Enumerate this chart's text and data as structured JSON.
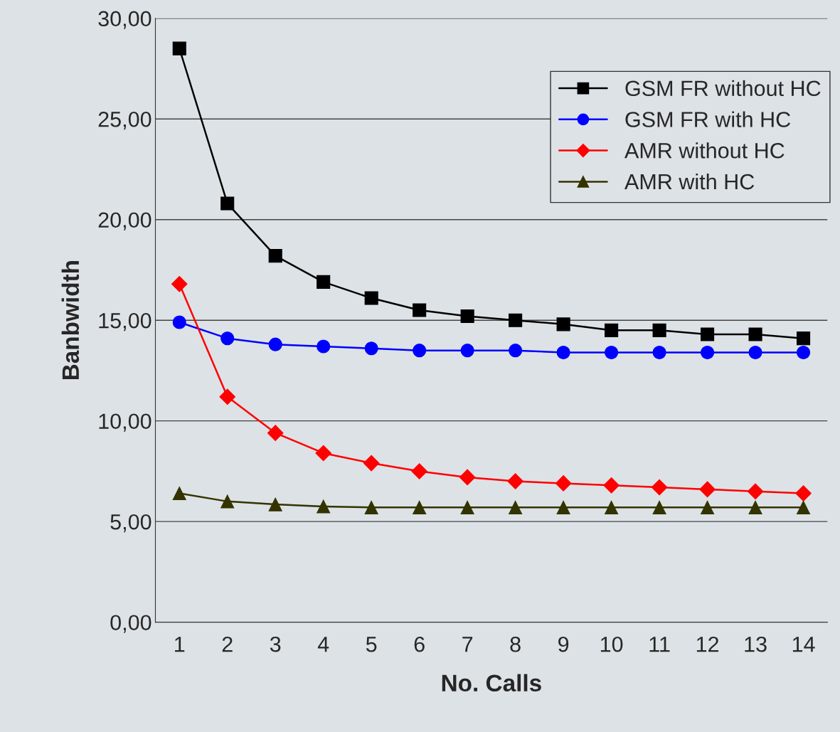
{
  "chart_data": {
    "type": "line",
    "xlabel": "No. Calls",
    "ylabel": "Banbwidth",
    "categories": [
      "1",
      "2",
      "3",
      "4",
      "5",
      "6",
      "7",
      "8",
      "9",
      "10",
      "11",
      "12",
      "13",
      "14"
    ],
    "series": [
      {
        "name": "GSM FR without HC",
        "color": "#000000",
        "marker": "square",
        "values": [
          28.5,
          20.8,
          18.2,
          16.9,
          16.1,
          15.5,
          15.2,
          15.0,
          14.8,
          14.5,
          14.5,
          14.3,
          14.3,
          14.1
        ]
      },
      {
        "name": "GSM FR with HC",
        "color": "#0000ff",
        "marker": "circle",
        "values": [
          14.9,
          14.1,
          13.8,
          13.7,
          13.6,
          13.5,
          13.5,
          13.5,
          13.4,
          13.4,
          13.4,
          13.4,
          13.4,
          13.4
        ]
      },
      {
        "name": "AMR without HC",
        "color": "#ff0000",
        "marker": "diamond",
        "values": [
          16.8,
          11.2,
          9.4,
          8.4,
          7.9,
          7.5,
          7.2,
          7.0,
          6.9,
          6.8,
          6.7,
          6.6,
          6.5,
          6.4
        ]
      },
      {
        "name": "AMR with HC",
        "color": "#333300",
        "marker": "triangle",
        "values": [
          6.4,
          6.0,
          5.85,
          5.75,
          5.7,
          5.7,
          5.7,
          5.7,
          5.7,
          5.7,
          5.7,
          5.7,
          5.7,
          5.7
        ]
      }
    ],
    "ylim": [
      0,
      30
    ],
    "yticks": [
      {
        "value": 0,
        "label": "0,00"
      },
      {
        "value": 5,
        "label": "5,00"
      },
      {
        "value": 10,
        "label": "10,00"
      },
      {
        "value": 15,
        "label": "15,00"
      },
      {
        "value": 20,
        "label": "20,00"
      },
      {
        "value": 25,
        "label": "25,00"
      },
      {
        "value": 30,
        "label": "30,00"
      }
    ],
    "grid": "y",
    "legend": "top right",
    "line_style": "solid"
  }
}
